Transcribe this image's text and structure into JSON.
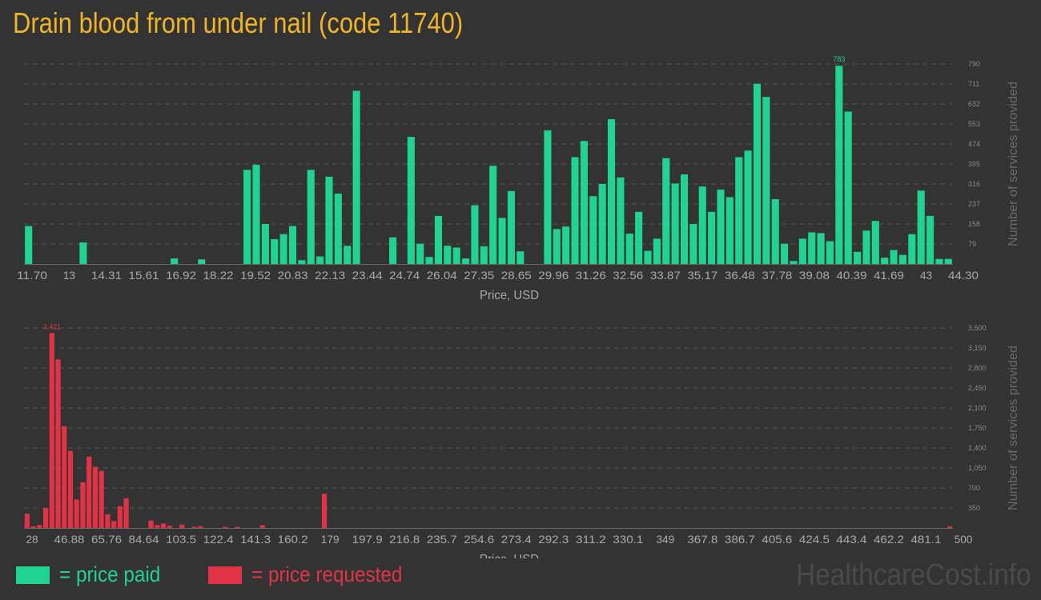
{
  "title": "Drain blood from under nail (code 11740)",
  "colors": {
    "background": "#333333",
    "title": "#f0b429",
    "paid": "#21d392",
    "requested": "#e03446",
    "grid": "#555555",
    "axis_text": "#aaaaaa",
    "tick_text": "#8a8a8a",
    "watermark": "#4a4a4a"
  },
  "chart_data": [
    {
      "type": "bar",
      "name": "price-paid-histogram",
      "xlabel": "Price, USD",
      "ylabel": "Number of services provided",
      "x_range": [
        11.7,
        44.3
      ],
      "ylim": [
        0,
        790
      ],
      "x_ticks": [
        "11.70",
        "13",
        "14.31",
        "15.61",
        "16.92",
        "18.22",
        "19.52",
        "20.83",
        "22.13",
        "23.44",
        "24.74",
        "26.04",
        "27.35",
        "28.65",
        "29.96",
        "31.26",
        "32.56",
        "33.87",
        "35.17",
        "36.48",
        "37.78",
        "39.08",
        "40.39",
        "41.69",
        "43",
        "44.30"
      ],
      "y_ticks": [
        "79",
        "158",
        "237",
        "316",
        "395",
        "474",
        "553",
        "632",
        "711",
        "790"
      ],
      "grid": true,
      "max_label": "783",
      "values": [
        150,
        0,
        0,
        0,
        0,
        0,
        85,
        0,
        0,
        0,
        0,
        0,
        0,
        0,
        0,
        0,
        22,
        0,
        0,
        18,
        0,
        0,
        0,
        0,
        372,
        392,
        158,
        98,
        118,
        150,
        15,
        372,
        30,
        345,
        278,
        72,
        684,
        0,
        0,
        0,
        105,
        0,
        502,
        80,
        28,
        190,
        72,
        65,
        22,
        232,
        70,
        388,
        182,
        288,
        50,
        0,
        0,
        528,
        138,
        148,
        422,
        486,
        268,
        316,
        572,
        342,
        120,
        206,
        52,
        100,
        418,
        318,
        354,
        158,
        306,
        206,
        294,
        264,
        422,
        448,
        712,
        660,
        256,
        80,
        12,
        100,
        125,
        122,
        90,
        783,
        602,
        48,
        132,
        170,
        25,
        55,
        36,
        118,
        290,
        190,
        20,
        20
      ]
    },
    {
      "type": "bar",
      "name": "price-requested-histogram",
      "xlabel": "Price, USD",
      "ylabel": "Number of services provided",
      "x_range": [
        28,
        500
      ],
      "ylim": [
        0,
        3500
      ],
      "x_ticks": [
        "28",
        "46.88",
        "65.76",
        "84.64",
        "103.5",
        "122.4",
        "141.3",
        "160.2",
        "179",
        "197.9",
        "216.8",
        "235.7",
        "254.6",
        "273.4",
        "292.3",
        "311.2",
        "330.1",
        "349",
        "367.8",
        "386.7",
        "405.6",
        "424.5",
        "443.4",
        "462.2",
        "481.1",
        "500"
      ],
      "y_ticks": [
        "350",
        "700",
        "1,050",
        "1,400",
        "1,750",
        "2,100",
        "2,450",
        "2,800",
        "3,150",
        "3,500"
      ],
      "grid": true,
      "max_label": "3,411",
      "values": [
        250,
        30,
        50,
        350,
        3411,
        2950,
        1780,
        1350,
        500,
        800,
        1250,
        1070,
        1000,
        240,
        120,
        380,
        520,
        0,
        0,
        0,
        130,
        50,
        80,
        40,
        0,
        60,
        0,
        20,
        30,
        0,
        0,
        0,
        20,
        0,
        20,
        0,
        0,
        0,
        50,
        0,
        0,
        0,
        0,
        0,
        0,
        0,
        0,
        0,
        600,
        0,
        0,
        0,
        0,
        0,
        0,
        0,
        0,
        0,
        0,
        0,
        0,
        0,
        0,
        0,
        0,
        0,
        0,
        0,
        0,
        0,
        0,
        0,
        0,
        0,
        0,
        0,
        0,
        0,
        0,
        0,
        0,
        0,
        0,
        0,
        0,
        0,
        0,
        0,
        0,
        0,
        0,
        0,
        0,
        0,
        0,
        0,
        0,
        0,
        0,
        0,
        0,
        0,
        0,
        0,
        0,
        0,
        0,
        0,
        0,
        0,
        0,
        0,
        0,
        0,
        0,
        0,
        0,
        0,
        0,
        0,
        0,
        0,
        0,
        0,
        0,
        0,
        0,
        0,
        0,
        0,
        0,
        0,
        0,
        0,
        0,
        0,
        0,
        0,
        0,
        0,
        0,
        0,
        0,
        0,
        0,
        0,
        0,
        0,
        0,
        30
      ]
    }
  ],
  "legend": {
    "paid_label": "= price paid",
    "requested_label": "= price requested"
  },
  "watermark": "HealthcareCost.info"
}
